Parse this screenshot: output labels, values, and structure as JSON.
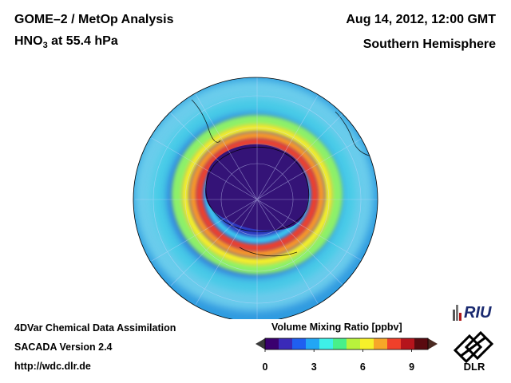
{
  "header": {
    "title": "GOME–2 / MetOp Analysis",
    "species": "HNO",
    "species_sub": "3",
    "level": " at 55.4 hPa",
    "datetime": "Aug 14, 2012, 12:00 GMT",
    "region": "Southern Hemisphere"
  },
  "footer": {
    "line1": "4DVar Chemical Data Assimilation",
    "line2": "SACADA Version 2.4",
    "line3": "http://wdc.dlr.de"
  },
  "colorbar": {
    "title": "Volume Mixing Ratio [ppbv]",
    "ticks": [
      "0",
      "3",
      "6",
      "9"
    ],
    "range": [
      0,
      10
    ],
    "colors": [
      "#3a006f",
      "#3a2ab8",
      "#1f5ff0",
      "#22a6f5",
      "#3ef0e8",
      "#48f08a",
      "#b8f23c",
      "#f6f02a",
      "#f7a628",
      "#f0402a",
      "#b5141c",
      "#5a0a10"
    ]
  },
  "logos": {
    "riu": "RIU",
    "dlr": "DLR"
  },
  "map": {
    "projection": "orthographic-south-polar"
  }
}
